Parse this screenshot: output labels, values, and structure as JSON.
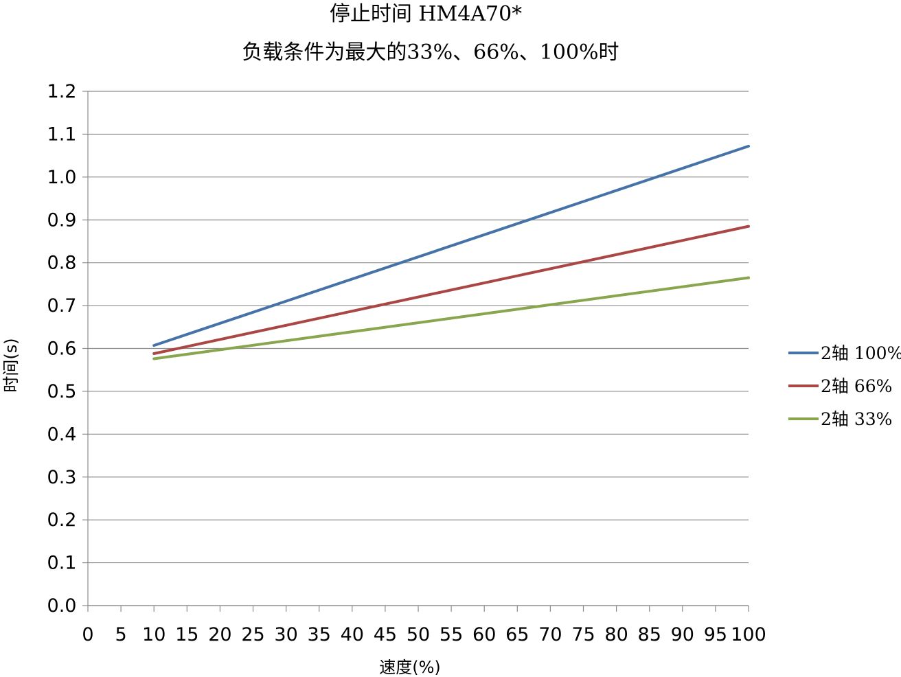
{
  "chart_data": {
    "type": "line",
    "title": "停止时间 HM4A70*",
    "subtitle": "负载条件为最大的33%、66%、100%时",
    "xlabel": "速度(%)",
    "ylabel": "时间(s)",
    "xlim": [
      0,
      100
    ],
    "ylim": [
      0,
      1.2
    ],
    "grid": true,
    "legend_position": "right",
    "x_ticks": [
      "0",
      "5",
      "10",
      "15",
      "20",
      "25",
      "30",
      "35",
      "40",
      "45",
      "50",
      "55",
      "60",
      "65",
      "70",
      "75",
      "80",
      "85",
      "90",
      "95",
      "100"
    ],
    "y_ticks": [
      "0.0",
      "0.1",
      "0.2",
      "0.3",
      "0.4",
      "0.5",
      "0.6",
      "0.7",
      "0.8",
      "0.9",
      "1.0",
      "1.1",
      "1.2"
    ],
    "series": [
      {
        "name": "2轴 100%",
        "color": "#4572A7",
        "x": [
          10,
          100
        ],
        "values": [
          0.607,
          1.072
        ]
      },
      {
        "name": "2轴 66%",
        "color": "#AA4643",
        "x": [
          10,
          100
        ],
        "values": [
          0.588,
          0.885
        ]
      },
      {
        "name": "2轴 33%",
        "color": "#89A54E",
        "x": [
          10,
          100
        ],
        "values": [
          0.576,
          0.765
        ]
      }
    ]
  }
}
